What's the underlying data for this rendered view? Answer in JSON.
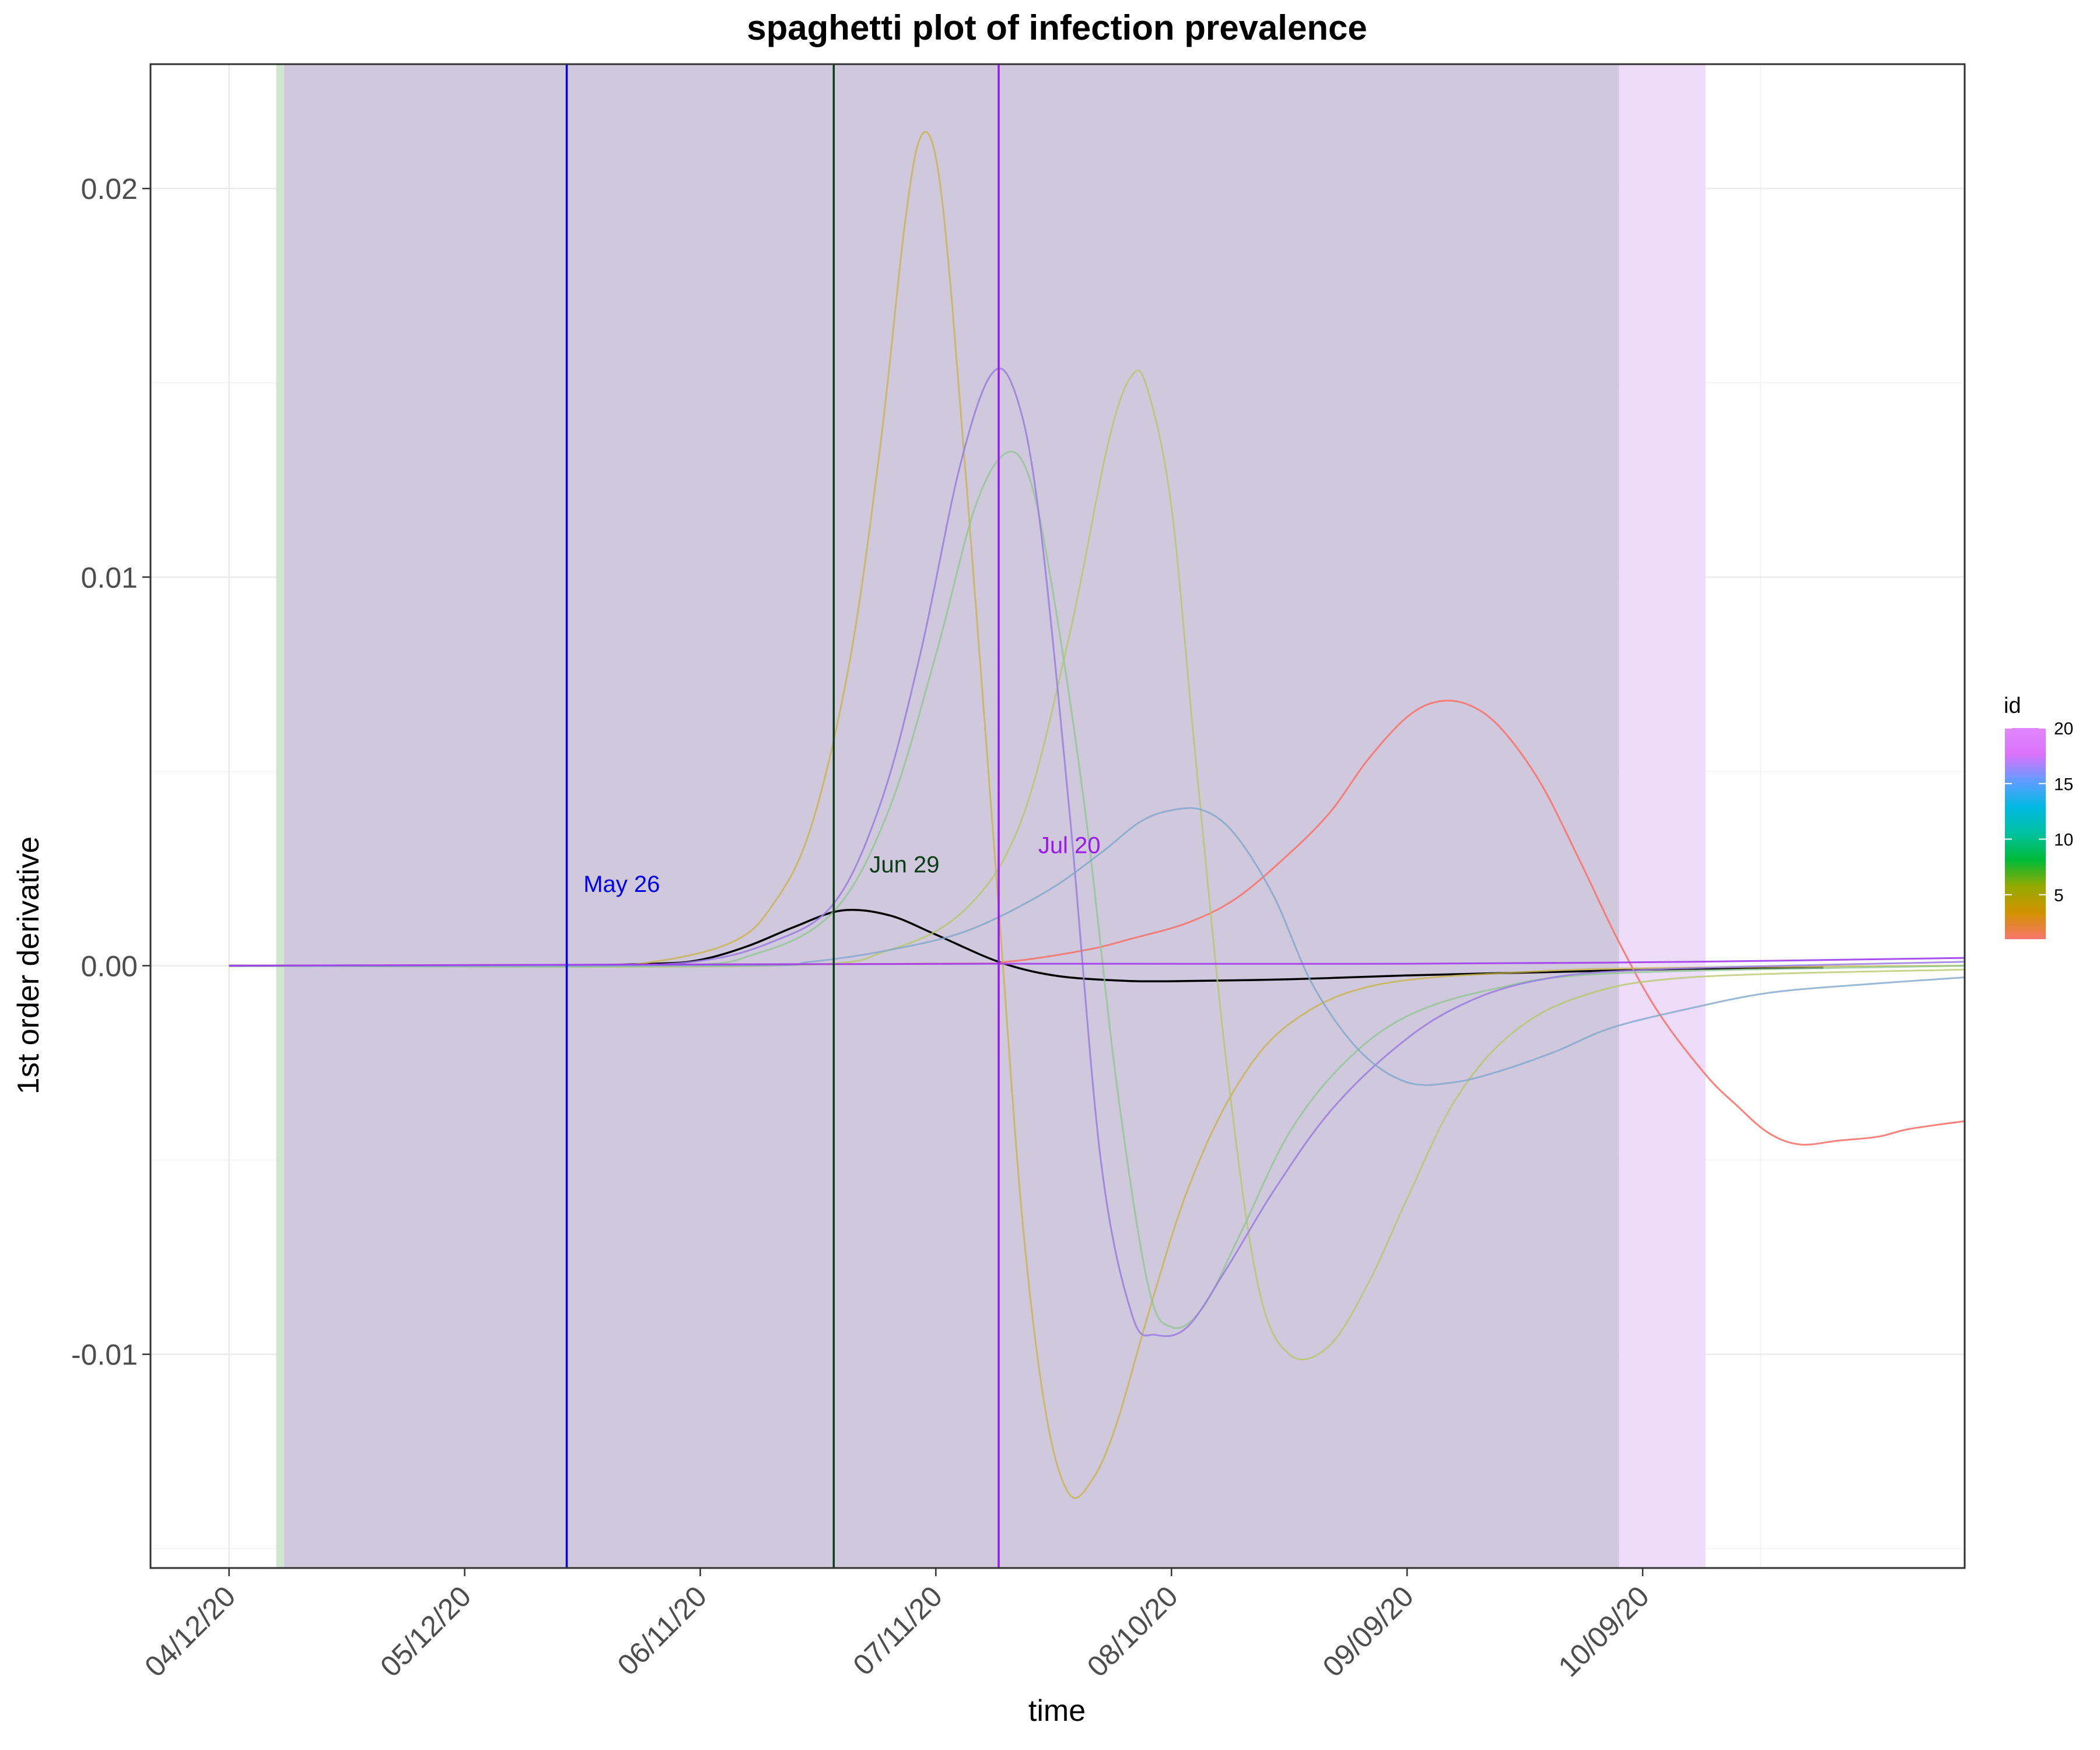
{
  "chart_data": {
    "type": "line",
    "title": "spaghetti plot of infection prevalence",
    "xlabel": "time",
    "ylabel": "1st order derivative",
    "x_range": [
      "2020-04-02",
      "2020-11-19"
    ],
    "ylim": [
      -0.0155,
      0.0232
    ],
    "x_tick_labels": [
      "04/12/20",
      "05/12/20",
      "06/11/20",
      "07/11/20",
      "08/10/20",
      "09/09/20",
      "10/09/20"
    ],
    "x_tick_dates": [
      "2020-04-12",
      "2020-05-12",
      "2020-06-11",
      "2020-07-11",
      "2020-08-10",
      "2020-09-09",
      "2020-10-09"
    ],
    "y_ticks": [
      -0.01,
      0.0,
      0.01,
      0.02
    ],
    "y_tick_labels": [
      "-0.01",
      "0.00",
      "0.01",
      "0.02"
    ],
    "grid": true,
    "legend": {
      "title": "id",
      "placement": "right",
      "type": "colorbar",
      "min": 1,
      "max": 20,
      "ticks": [
        5,
        10,
        15,
        20
      ],
      "tick_labels": [
        "5",
        "10",
        "15",
        "20"
      ],
      "colors": [
        "#f8766d",
        "#d39200",
        "#93aa00",
        "#00ba38",
        "#00c19f",
        "#00b9e3",
        "#619cff",
        "#db72fb",
        "#e088fd"
      ]
    },
    "shaded_regions": [
      {
        "start": "2020-04-18",
        "end": "2020-04-19",
        "color": "#cfe6d0"
      },
      {
        "start": "2020-04-19",
        "end": "2020-10-06",
        "color": "#d0c8dd"
      },
      {
        "start": "2020-10-06",
        "end": "2020-10-17",
        "color": "#eedcfb"
      }
    ],
    "vlines": [
      {
        "date": "2020-05-25",
        "label": "May 26",
        "color": "#0000ee",
        "label_date": "2020-06-01",
        "label_y": 0.0019
      },
      {
        "date": "2020-06-28",
        "label": "Jun 29",
        "color": "#0a3d17",
        "label_date": "2020-07-07",
        "label_y": 0.0024
      },
      {
        "date": "2020-07-19",
        "label": "Jul 20",
        "color": "#9b19f0",
        "label_date": "2020-07-28",
        "label_y": 0.0029
      }
    ],
    "series": [
      {
        "color": "#000000",
        "opacity": 1.0,
        "points": [
          [
            "2020-04-12",
            0
          ],
          [
            "2020-05-20",
            0
          ],
          [
            "2020-06-05",
            5e-05
          ],
          [
            "2020-06-11",
            0.00015
          ],
          [
            "2020-06-17",
            0.0005
          ],
          [
            "2020-06-23",
            0.001
          ],
          [
            "2020-06-29",
            0.00142
          ],
          [
            "2020-07-05",
            0.0013
          ],
          [
            "2020-07-11",
            0.0008
          ],
          [
            "2020-07-19",
            0.0001
          ],
          [
            "2020-07-26",
            -0.00025
          ],
          [
            "2020-08-03",
            -0.00038
          ],
          [
            "2020-08-10",
            -0.0004
          ],
          [
            "2020-08-25",
            -0.00035
          ],
          [
            "2020-09-09",
            -0.00025
          ],
          [
            "2020-09-30",
            -0.00015
          ],
          [
            "2020-10-15",
            -8e-05
          ],
          [
            "2020-11-01",
            -5e-05
          ]
        ]
      },
      {
        "color": "#f8766d",
        "opacity": 0.9,
        "points": [
          [
            "2020-04-12",
            0
          ],
          [
            "2020-07-10",
            5e-05
          ],
          [
            "2020-07-20",
            0.0001
          ],
          [
            "2020-07-30",
            0.0004
          ],
          [
            "2020-08-05",
            0.0007
          ],
          [
            "2020-08-12",
            0.0011
          ],
          [
            "2020-08-18",
            0.0017
          ],
          [
            "2020-08-24",
            0.0027
          ],
          [
            "2020-08-30",
            0.0039
          ],
          [
            "2020-09-04",
            0.0053
          ],
          [
            "2020-09-09",
            0.0064
          ],
          [
            "2020-09-13",
            0.0068
          ],
          [
            "2020-09-17",
            0.0067
          ],
          [
            "2020-09-21",
            0.0061
          ],
          [
            "2020-09-26",
            0.0047
          ],
          [
            "2020-10-01",
            0.0027
          ],
          [
            "2020-10-06",
            0.0006
          ],
          [
            "2020-10-11",
            -0.0012
          ],
          [
            "2020-10-17",
            -0.0028
          ],
          [
            "2020-10-21",
            -0.0036
          ],
          [
            "2020-10-25",
            -0.0043
          ],
          [
            "2020-10-29",
            -0.0046
          ],
          [
            "2020-11-03",
            -0.0045
          ],
          [
            "2020-11-08",
            -0.0044
          ],
          [
            "2020-11-12",
            -0.0042
          ],
          [
            "2020-11-19",
            -0.004
          ]
        ]
      },
      {
        "color": "#c8b446",
        "opacity": 0.75,
        "points": [
          [
            "2020-04-12",
            0
          ],
          [
            "2020-05-25",
            0
          ],
          [
            "2020-06-05",
            0.0001
          ],
          [
            "2020-06-15",
            0.0006
          ],
          [
            "2020-06-20",
            0.0015
          ],
          [
            "2020-06-25",
            0.0035
          ],
          [
            "2020-06-30",
            0.0078
          ],
          [
            "2020-07-04",
            0.0135
          ],
          [
            "2020-07-07",
            0.019
          ],
          [
            "2020-07-09",
            0.0213
          ],
          [
            "2020-07-11",
            0.0208
          ],
          [
            "2020-07-13",
            0.0172
          ],
          [
            "2020-07-16",
            0.0095
          ],
          [
            "2020-07-19",
            0.0015
          ],
          [
            "2020-07-22",
            -0.0065
          ],
          [
            "2020-07-25",
            -0.0115
          ],
          [
            "2020-07-28",
            -0.0136
          ],
          [
            "2020-07-31",
            -0.0132
          ],
          [
            "2020-08-03",
            -0.0118
          ],
          [
            "2020-08-07",
            -0.009
          ],
          [
            "2020-08-12",
            -0.0058
          ],
          [
            "2020-08-18",
            -0.0032
          ],
          [
            "2020-08-25",
            -0.0015
          ],
          [
            "2020-09-05",
            -0.0005
          ],
          [
            "2020-09-25",
            -0.00015
          ],
          [
            "2020-10-15",
            -5e-05
          ],
          [
            "2020-11-19",
            0
          ]
        ]
      },
      {
        "color": "#b4c864",
        "opacity": 0.75,
        "points": [
          [
            "2020-04-12",
            0
          ],
          [
            "2020-06-20",
            0
          ],
          [
            "2020-07-05",
            0.0004
          ],
          [
            "2020-07-15",
            0.0015
          ],
          [
            "2020-07-22",
            0.0038
          ],
          [
            "2020-07-28",
            0.0085
          ],
          [
            "2020-08-02",
            0.0135
          ],
          [
            "2020-08-05",
            0.0152
          ],
          [
            "2020-08-07",
            0.0148
          ],
          [
            "2020-08-10",
            0.0118
          ],
          [
            "2020-08-13",
            0.0055
          ],
          [
            "2020-08-17",
            -0.0025
          ],
          [
            "2020-08-21",
            -0.0082
          ],
          [
            "2020-08-25",
            -0.01
          ],
          [
            "2020-08-30",
            -0.0098
          ],
          [
            "2020-09-04",
            -0.0082
          ],
          [
            "2020-09-09",
            -0.006
          ],
          [
            "2020-09-15",
            -0.0035
          ],
          [
            "2020-09-22",
            -0.0018
          ],
          [
            "2020-10-01",
            -0.0008
          ],
          [
            "2020-10-15",
            -0.0003
          ],
          [
            "2020-11-19",
            -0.0001
          ]
        ]
      },
      {
        "color": "#8cc88c",
        "opacity": 0.75,
        "points": [
          [
            "2020-04-12",
            0
          ],
          [
            "2020-06-05",
            0
          ],
          [
            "2020-06-18",
            0.0003
          ],
          [
            "2020-06-28",
            0.0014
          ],
          [
            "2020-07-05",
            0.004
          ],
          [
            "2020-07-11",
            0.008
          ],
          [
            "2020-07-16",
            0.0118
          ],
          [
            "2020-07-20",
            0.0132
          ],
          [
            "2020-07-23",
            0.0125
          ],
          [
            "2020-07-26",
            0.0095
          ],
          [
            "2020-07-30",
            0.004
          ],
          [
            "2020-08-03",
            -0.003
          ],
          [
            "2020-08-07",
            -0.0082
          ],
          [
            "2020-08-10",
            -0.0093
          ],
          [
            "2020-08-14",
            -0.0088
          ],
          [
            "2020-08-19",
            -0.0068
          ],
          [
            "2020-08-25",
            -0.0043
          ],
          [
            "2020-09-01",
            -0.0025
          ],
          [
            "2020-09-09",
            -0.0013
          ],
          [
            "2020-09-20",
            -0.0006
          ],
          [
            "2020-10-05",
            -0.0002
          ],
          [
            "2020-11-19",
            0
          ]
        ]
      },
      {
        "color": "#9a7ee0",
        "opacity": 0.85,
        "points": [
          [
            "2020-04-12",
            0
          ],
          [
            "2020-05-25",
            0
          ],
          [
            "2020-06-10",
            0.0001
          ],
          [
            "2020-06-20",
            0.0006
          ],
          [
            "2020-06-28",
            0.0016
          ],
          [
            "2020-07-04",
            0.0042
          ],
          [
            "2020-07-09",
            0.008
          ],
          [
            "2020-07-14",
            0.0128
          ],
          [
            "2020-07-18",
            0.0152
          ],
          [
            "2020-07-21",
            0.0148
          ],
          [
            "2020-07-24",
            0.0118
          ],
          [
            "2020-07-28",
            0.004
          ],
          [
            "2020-08-01",
            -0.005
          ],
          [
            "2020-08-05",
            -0.009
          ],
          [
            "2020-08-08",
            -0.0095
          ],
          [
            "2020-08-12",
            -0.0093
          ],
          [
            "2020-08-17",
            -0.0078
          ],
          [
            "2020-08-23",
            -0.0058
          ],
          [
            "2020-08-30",
            -0.0038
          ],
          [
            "2020-09-07",
            -0.0022
          ],
          [
            "2020-09-15",
            -0.0011
          ],
          [
            "2020-09-25",
            -0.0004
          ],
          [
            "2020-10-10",
            -0.0001
          ],
          [
            "2020-11-19",
            0.0001
          ]
        ]
      },
      {
        "color": "#7fa7cc",
        "opacity": 0.8,
        "points": [
          [
            "2020-04-12",
            0
          ],
          [
            "2020-06-15",
            0
          ],
          [
            "2020-06-25",
            0.0001
          ],
          [
            "2020-07-05",
            0.0004
          ],
          [
            "2020-07-15",
            0.0009
          ],
          [
            "2020-07-25",
            0.0019
          ],
          [
            "2020-08-01",
            0.0029
          ],
          [
            "2020-08-06",
            0.0037
          ],
          [
            "2020-08-10",
            0.004
          ],
          [
            "2020-08-14",
            0.004
          ],
          [
            "2020-08-18",
            0.0034
          ],
          [
            "2020-08-23",
            0.0018
          ],
          [
            "2020-08-28",
            -0.0005
          ],
          [
            "2020-09-03",
            -0.0022
          ],
          [
            "2020-09-09",
            -0.003
          ],
          [
            "2020-09-15",
            -0.003
          ],
          [
            "2020-09-21",
            -0.0027
          ],
          [
            "2020-09-28",
            -0.0022
          ],
          [
            "2020-10-05",
            -0.0016
          ],
          [
            "2020-10-15",
            -0.0011
          ],
          [
            "2020-10-25",
            -0.0007
          ],
          [
            "2020-11-05",
            -0.0005
          ],
          [
            "2020-11-19",
            -0.0003
          ]
        ]
      },
      {
        "color": "#a03cf0",
        "opacity": 0.9,
        "points": [
          [
            "2020-04-12",
            0
          ],
          [
            "2020-07-19",
            5e-05
          ],
          [
            "2020-09-09",
            5e-05
          ],
          [
            "2020-10-15",
            0.0001
          ],
          [
            "2020-11-19",
            0.0002
          ]
        ]
      }
    ]
  }
}
